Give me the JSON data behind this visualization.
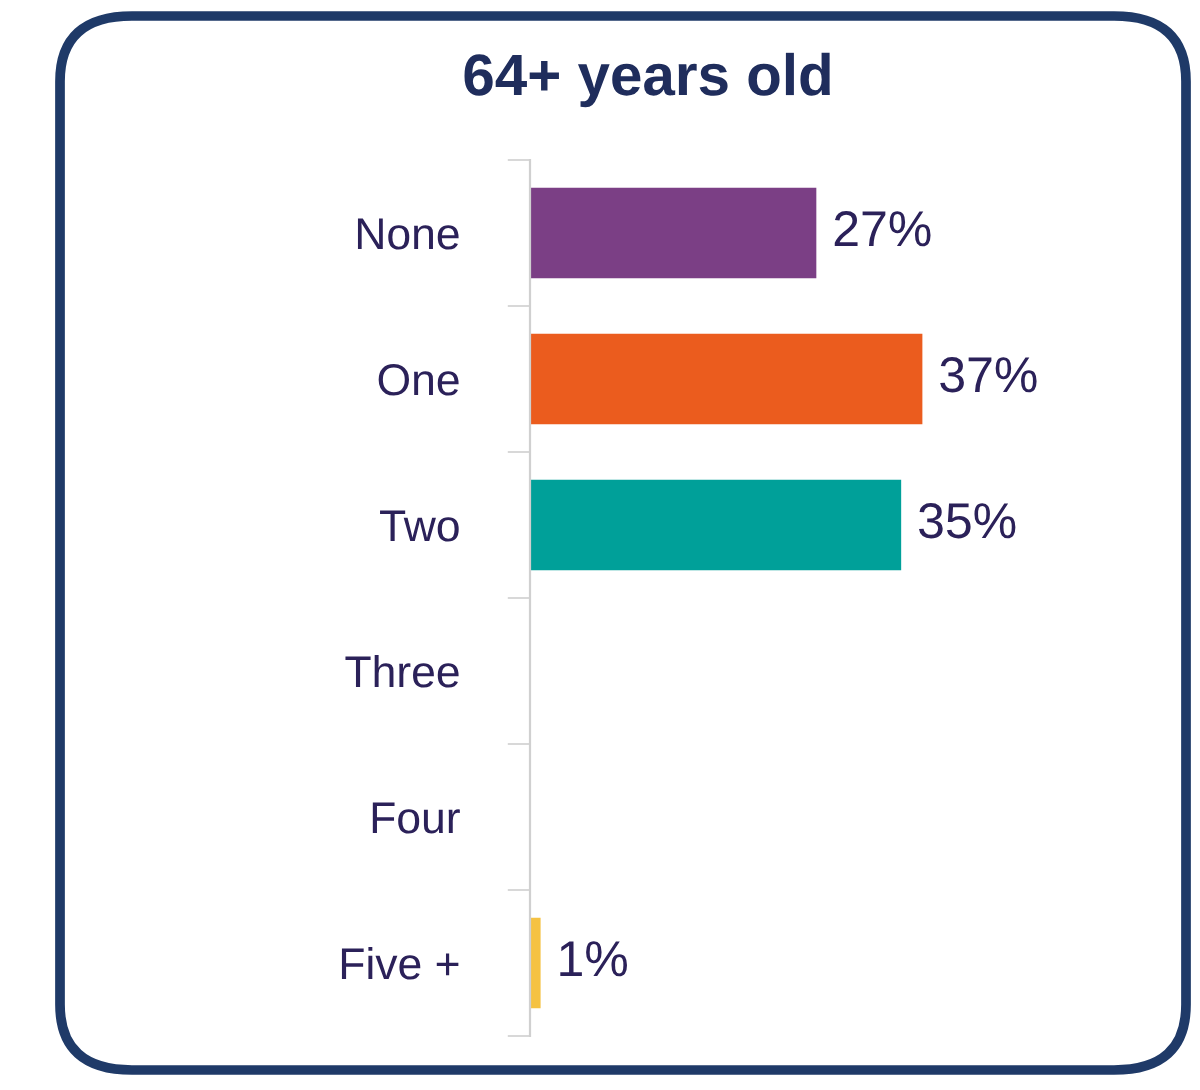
{
  "chart_data": {
    "type": "bar",
    "orientation": "horizontal",
    "title": "64+ years old",
    "categories": [
      "None",
      "One",
      "Two",
      "Three",
      "Four",
      "Five +"
    ],
    "values": [
      27,
      37,
      35,
      null,
      null,
      1
    ],
    "colors": [
      "#7b3f85",
      "#eb5c1e",
      "#00a099",
      "#cccccc",
      "#cccccc",
      "#f5c242"
    ],
    "value_labels": [
      "27%",
      "37%",
      "35%",
      null,
      null,
      "1%"
    ],
    "tick_labels": "y",
    "grid": false,
    "legend": false
  }
}
